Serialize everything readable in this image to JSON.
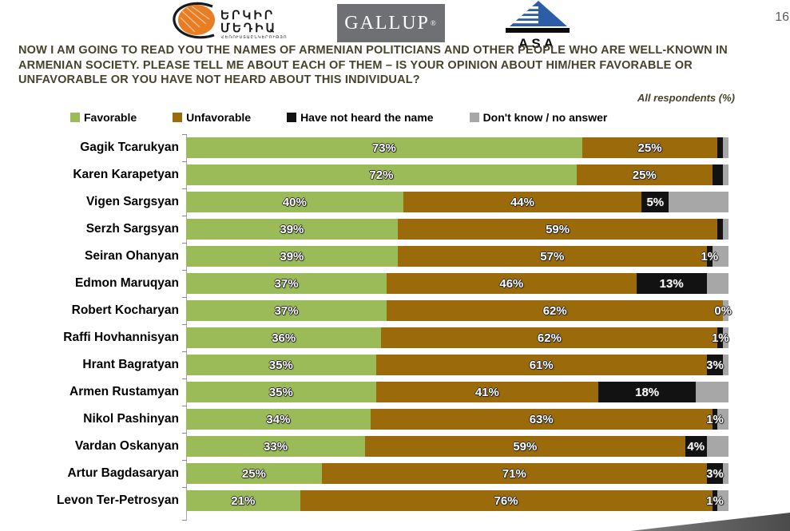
{
  "page": {
    "number": "16"
  },
  "header": {
    "logos": {
      "yerkir": {
        "line1": "ԵՐԿԻՐ",
        "line2": "ՄԵԴԻԱ",
        "tagline": "ՀԵՌՈՒՍՏԱԸՆԿԵՐՈՒԹՅՈՒՆ"
      },
      "gallup": {
        "text": "GALLUP"
      },
      "asa": {
        "text": "ASA"
      }
    }
  },
  "title": "NOW I AM GOING TO READ YOU THE NAMES OF ARMENIAN POLITICIANS AND OTHER PEOPLE WHO ARE WELL-KNOWN IN ARMENIAN SOCIETY. PLEASE TELL ME ABOUT EACH OF THEM – IS YOUR OPINION ABOUT HIM/HER FAVORABLE OR UNFAVORABLE OR YOU HAVE NOT HEARD ABOUT THIS INDIVIDUAL?",
  "subtitle": "All respondents (%)",
  "legend": [
    {
      "label": "Favorable",
      "color": "#9BBB59"
    },
    {
      "label": "Unfavorable",
      "color": "#9A6A0B"
    },
    {
      "label": "Have not heard the name",
      "color": "#121212"
    },
    {
      "label": "Don't know / no answer",
      "color": "#A7A7A7"
    }
  ],
  "chart_data": {
    "type": "bar",
    "orientation": "horizontal",
    "stacked": true,
    "title": "Favorability of Armenian politicians",
    "xlabel": "",
    "ylabel": "",
    "xlim": [
      0,
      100
    ],
    "value_unit": "%",
    "grid": false,
    "legend_position": "top",
    "categories": [
      "Gagik Tcarukyan",
      "Karen Karapetyan",
      "Vigen Sargsyan",
      "Serzh Sargsyan",
      "Seiran Ohanyan",
      "Edmon Maruqyan",
      "Robert Kocharyan",
      "Raffi Hovhannisyan",
      "Hrant Bagratyan",
      "Armen Rustamyan",
      "Nikol Pashinyan",
      "Vardan Oskanyan",
      "Artur Bagdasaryan",
      "Levon Ter-Petrosyan"
    ],
    "series": [
      {
        "key": "favorable",
        "name": "Favorable",
        "color": "#9BBB59",
        "values": [
          73,
          72,
          40,
          39,
          39,
          37,
          37,
          36,
          35,
          35,
          34,
          33,
          25,
          21
        ]
      },
      {
        "key": "unfavorable",
        "name": "Unfavorable",
        "color": "#9A6A0B",
        "values": [
          25,
          25,
          44,
          59,
          57,
          46,
          62,
          62,
          61,
          41,
          63,
          59,
          71,
          76
        ]
      },
      {
        "key": "not_heard",
        "name": "Have not heard the name",
        "color": "#121212",
        "values": [
          1,
          2,
          5,
          1,
          1,
          13,
          0,
          1,
          3,
          18,
          1,
          4,
          3,
          1
        ]
      },
      {
        "key": "dont_know",
        "name": "Don't know / no answer",
        "color": "#A7A7A7",
        "values": [
          1,
          1,
          11,
          1,
          3,
          4,
          1,
          1,
          1,
          6,
          2,
          4,
          1,
          2
        ]
      }
    ],
    "shown_labels": {
      "favorable": [
        "73%",
        "72%",
        "40%",
        "39%",
        "39%",
        "37%",
        "37%",
        "36%",
        "35%",
        "35%",
        "34%",
        "33%",
        "25%",
        "21%"
      ],
      "unfavorable": [
        "25%",
        "25%",
        "44%",
        "59%",
        "57%",
        "46%",
        "62%",
        "62%",
        "61%",
        "41%",
        "63%",
        "59%",
        "71%",
        "76%"
      ],
      "not_heard": [
        "",
        "",
        "5%",
        "",
        "1%",
        "13%",
        "0%",
        "1%",
        "3%",
        "18%",
        "1%",
        "4%",
        "3%",
        "1%"
      ],
      "dont_know": [
        "",
        "",
        "",
        "",
        "",
        "",
        "",
        "",
        "",
        "",
        "",
        "",
        "",
        ""
      ]
    }
  }
}
